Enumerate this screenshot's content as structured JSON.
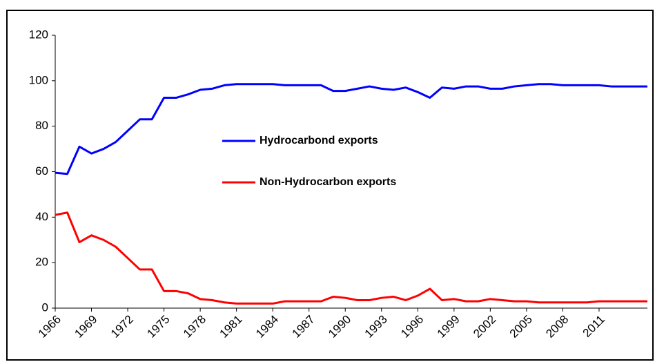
{
  "chart_data": {
    "type": "line",
    "x": [
      1966,
      1967,
      1968,
      1969,
      1970,
      1971,
      1972,
      1973,
      1974,
      1975,
      1976,
      1977,
      1978,
      1979,
      1980,
      1981,
      1982,
      1983,
      1984,
      1985,
      1986,
      1987,
      1988,
      1989,
      1990,
      1991,
      1992,
      1993,
      1994,
      1995,
      1996,
      1997,
      1998,
      1999,
      2000,
      2001,
      2002,
      2003,
      2004,
      2005,
      2006,
      2007,
      2008,
      2009,
      2010,
      2011,
      2012,
      2013,
      2014,
      2015
    ],
    "series": [
      {
        "name": "Hydrocarbond exports",
        "color": "#0000ff",
        "values": [
          59.5,
          59,
          71,
          68,
          70,
          73,
          78,
          83,
          83,
          92.5,
          92.5,
          94,
          96,
          96.5,
          98,
          98.5,
          98.5,
          98.5,
          98.5,
          98,
          98,
          98,
          98,
          95.5,
          95.5,
          96.5,
          97.5,
          96.5,
          96,
          97,
          95,
          92.5,
          97,
          96.5,
          97.5,
          97.5,
          96.5,
          96.5,
          97.5,
          98,
          98.5,
          98.5,
          98,
          98,
          98,
          98,
          97.5,
          97.5,
          97.5,
          97.5
        ]
      },
      {
        "name": "Non-Hydrocarbon exports",
        "color": "#ff0000",
        "values": [
          41,
          42,
          29,
          32,
          30,
          27,
          22,
          17,
          17,
          7.5,
          7.5,
          6.5,
          4,
          3.5,
          2.5,
          2,
          2,
          2,
          2,
          3,
          3,
          3,
          3,
          5,
          4.5,
          3.5,
          3.5,
          4.5,
          5,
          3.5,
          5.5,
          8.5,
          3.5,
          4,
          3,
          3,
          4,
          3.5,
          3,
          3,
          2.5,
          2.5,
          2.5,
          2.5,
          2.5,
          3,
          3,
          3,
          3,
          3
        ]
      }
    ],
    "xlim": [
      1966,
      2015
    ],
    "xticks": [
      1966,
      1969,
      1972,
      1975,
      1978,
      1981,
      1984,
      1987,
      1990,
      1993,
      1996,
      1999,
      2002,
      2005,
      2008,
      2011
    ],
    "ylim": [
      0,
      120
    ],
    "yticks": [
      0,
      20,
      40,
      60,
      80,
      100,
      120
    ]
  }
}
